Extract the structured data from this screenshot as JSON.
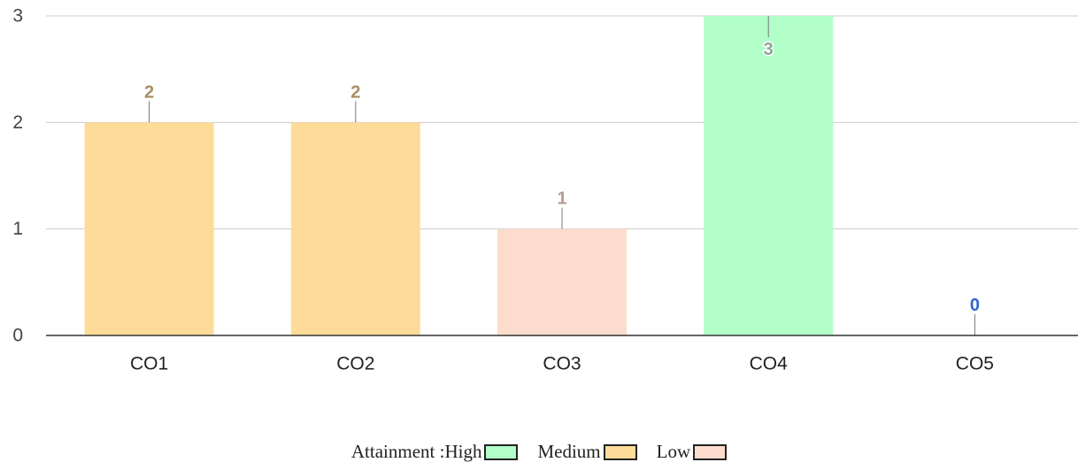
{
  "chart_data": {
    "type": "bar",
    "categories": [
      "CO1",
      "CO2",
      "CO3",
      "CO4",
      "CO5"
    ],
    "values": [
      2,
      2,
      1,
      3,
      0
    ],
    "bar_colors": [
      "#fddc9a",
      "#fddc9a",
      "#fcdccd",
      "#b1fec8",
      "#b1fec8"
    ],
    "label_colors": [
      "#a98e63",
      "#a98e63",
      "#b39c8f",
      "#8aa895",
      "#3366cc"
    ],
    "ylim": [
      0,
      3
    ],
    "yticks": [
      0,
      1,
      2,
      3
    ],
    "grid": true,
    "legend_placement": "bottom"
  },
  "legend": {
    "title": "Attainment :",
    "items": [
      {
        "label": "High",
        "color": "#b1fec8"
      },
      {
        "label": "Medium",
        "color": "#fddc9a"
      },
      {
        "label": "Low",
        "color": "#fcdccd"
      }
    ]
  }
}
